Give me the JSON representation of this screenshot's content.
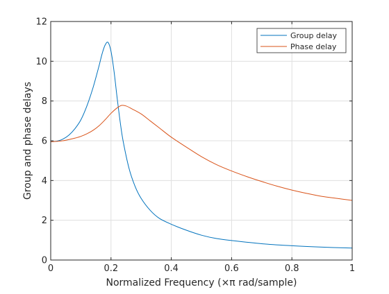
{
  "chart_data": {
    "type": "line",
    "title": "",
    "xlabel": "Normalized Frequency (×π rad/sample)",
    "ylabel": "Group and phase delays",
    "xlim": [
      0,
      1
    ],
    "ylim": [
      0,
      12
    ],
    "xticks": [
      0,
      0.2,
      0.4,
      0.6,
      0.8,
      1
    ],
    "xtick_labels": [
      "0",
      "0.2",
      "0.4",
      "0.6",
      "0.8",
      "1"
    ],
    "yticks": [
      0,
      2,
      4,
      6,
      8,
      10,
      12
    ],
    "ytick_labels": [
      "0",
      "2",
      "4",
      "6",
      "8",
      "10",
      "12"
    ],
    "grid": true,
    "legend_position": "top-right",
    "series": [
      {
        "name": "Group delay",
        "color": "#0072BD",
        "x": [
          0,
          0.02,
          0.04,
          0.06,
          0.08,
          0.1,
          0.12,
          0.14,
          0.16,
          0.17,
          0.18,
          0.19,
          0.2,
          0.21,
          0.22,
          0.23,
          0.24,
          0.26,
          0.28,
          0.3,
          0.33,
          0.36,
          0.4,
          0.45,
          0.5,
          0.55,
          0.6,
          0.7,
          0.8,
          0.9,
          1.0
        ],
        "y": [
          5.95,
          5.98,
          6.08,
          6.28,
          6.6,
          7.05,
          7.75,
          8.65,
          9.75,
          10.35,
          10.8,
          10.95,
          10.5,
          9.5,
          8.2,
          7.0,
          6.0,
          4.6,
          3.7,
          3.1,
          2.5,
          2.1,
          1.8,
          1.5,
          1.25,
          1.08,
          0.98,
          0.82,
          0.72,
          0.65,
          0.6
        ]
      },
      {
        "name": "Phase delay",
        "color": "#D95319",
        "x": [
          0,
          0.02,
          0.04,
          0.06,
          0.08,
          0.1,
          0.12,
          0.14,
          0.16,
          0.18,
          0.2,
          0.22,
          0.235,
          0.25,
          0.27,
          0.3,
          0.33,
          0.36,
          0.4,
          0.45,
          0.5,
          0.55,
          0.6,
          0.65,
          0.7,
          0.75,
          0.8,
          0.85,
          0.9,
          0.95,
          1.0
        ],
        "y": [
          5.95,
          5.97,
          6.0,
          6.06,
          6.13,
          6.22,
          6.35,
          6.52,
          6.75,
          7.05,
          7.38,
          7.65,
          7.78,
          7.75,
          7.6,
          7.35,
          7.0,
          6.65,
          6.18,
          5.68,
          5.2,
          4.8,
          4.48,
          4.2,
          3.95,
          3.72,
          3.52,
          3.35,
          3.2,
          3.1,
          3.0
        ]
      }
    ]
  }
}
